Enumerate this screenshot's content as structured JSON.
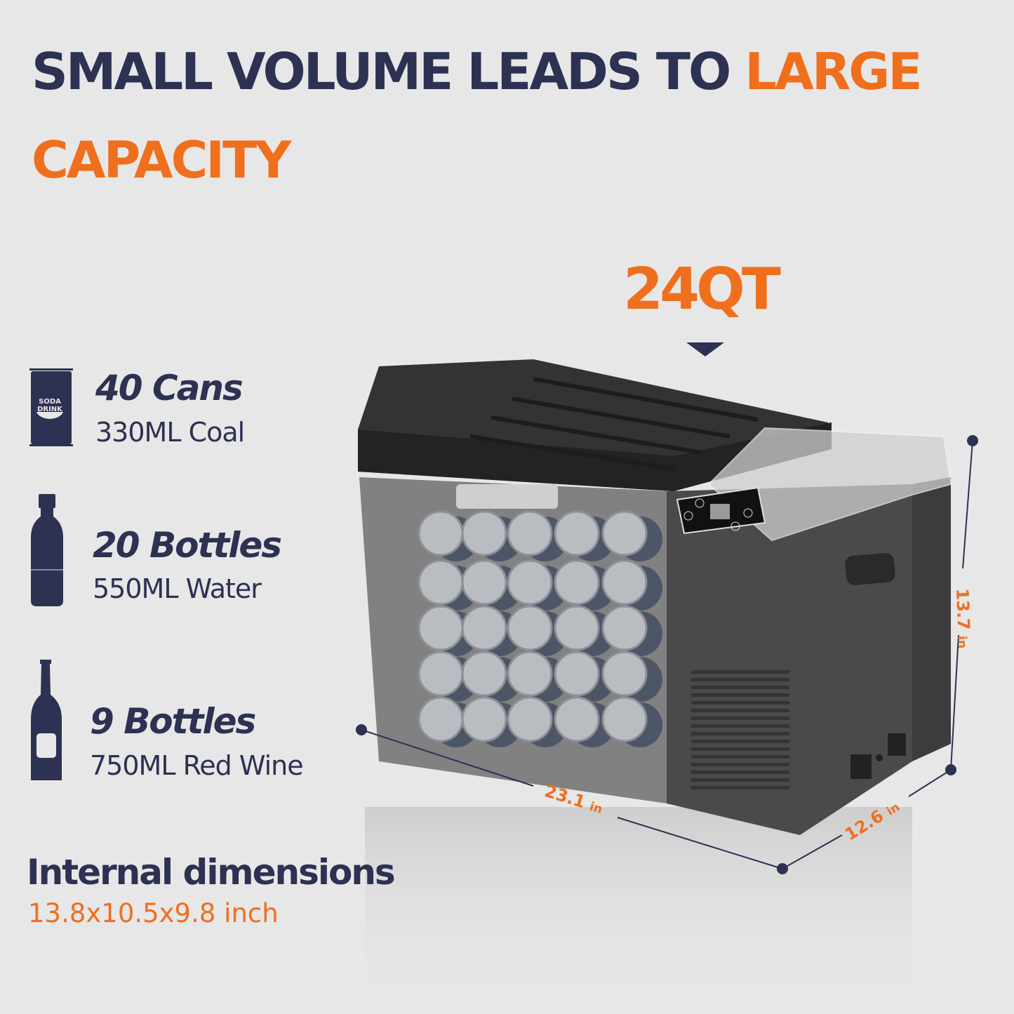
{
  "headline": {
    "line1_navy": "SMALL VOLUME LEADS TO",
    "line1_orange": "LARGE",
    "line2_orange": "CAPACITY"
  },
  "capacity_label": "24QT",
  "capacity_items": [
    {
      "icon": "soda-can-icon",
      "count": "40 Cans",
      "detail": "330ML Coal",
      "icon_text_1": "SODA",
      "icon_text_2": "DRINK"
    },
    {
      "icon": "water-bottle-icon",
      "count": "20 Bottles",
      "detail": "550ML Water"
    },
    {
      "icon": "wine-bottle-icon",
      "count": "9 Bottles",
      "detail": "750ML Red Wine"
    }
  ],
  "dimensions": {
    "height_value": "13.7",
    "height_unit": "in",
    "length_value": "23.1",
    "length_unit": "in",
    "width_value": "12.6",
    "width_unit": "in"
  },
  "internal": {
    "title": "Internal dimensions",
    "value": "13.8x10.5x9.8 inch"
  },
  "colors": {
    "navy": "#2d3152",
    "orange": "#f06f1d",
    "background": "#e7e7e7"
  }
}
